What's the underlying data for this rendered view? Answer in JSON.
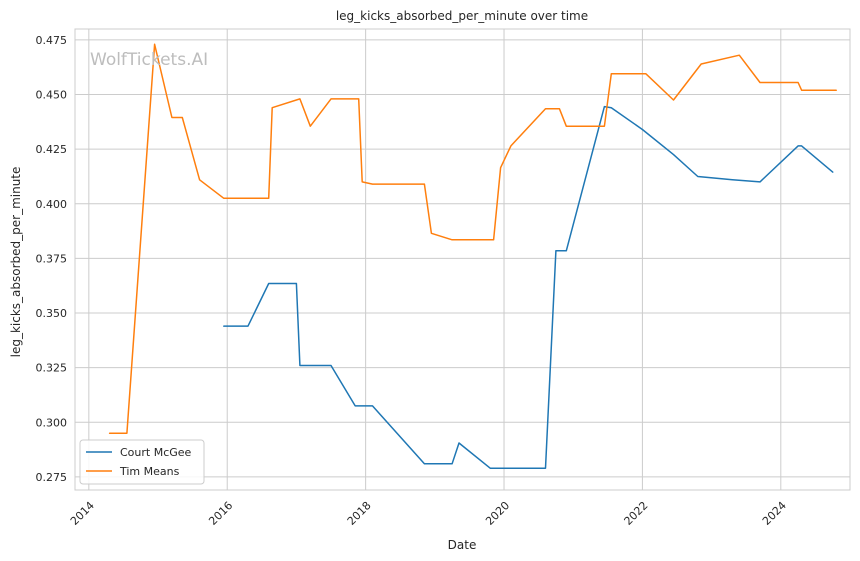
{
  "chart_data": {
    "type": "line",
    "title": "leg_kicks_absorbed_per_minute over time",
    "xlabel": "Date",
    "ylabel": "leg_kicks_absorbed_per_minute",
    "xlim": [
      2013.8,
      2025.0
    ],
    "ylim": [
      0.269,
      0.48
    ],
    "x_ticks": [
      2014,
      2016,
      2018,
      2020,
      2022,
      2024
    ],
    "y_ticks": [
      0.275,
      0.3,
      0.325,
      0.35,
      0.375,
      0.4,
      0.425,
      0.45,
      0.475
    ],
    "y_tick_labels": [
      "0.275",
      "0.300",
      "0.325",
      "0.350",
      "0.375",
      "0.400",
      "0.425",
      "0.450",
      "0.475"
    ],
    "grid": true,
    "legend_position": "lower-left",
    "watermark": "WolfTickets.AI",
    "series": [
      {
        "name": "Court McGee",
        "color": "#1f77b4",
        "points": [
          [
            2015.95,
            0.344
          ],
          [
            2016.3,
            0.344
          ],
          [
            2016.6,
            0.3635
          ],
          [
            2017.0,
            0.3635
          ],
          [
            2017.05,
            0.326
          ],
          [
            2017.5,
            0.326
          ],
          [
            2017.85,
            0.3075
          ],
          [
            2018.1,
            0.3075
          ],
          [
            2018.85,
            0.281
          ],
          [
            2019.25,
            0.281
          ],
          [
            2019.35,
            0.2905
          ],
          [
            2019.8,
            0.279
          ],
          [
            2020.6,
            0.279
          ],
          [
            2020.75,
            0.3785
          ],
          [
            2020.9,
            0.3785
          ],
          [
            2021.45,
            0.4445
          ],
          [
            2021.55,
            0.444
          ],
          [
            2022.0,
            0.434
          ],
          [
            2022.45,
            0.4225
          ],
          [
            2022.8,
            0.4125
          ],
          [
            2023.3,
            0.411
          ],
          [
            2023.7,
            0.41
          ],
          [
            2024.25,
            0.4265
          ],
          [
            2024.3,
            0.4265
          ],
          [
            2024.75,
            0.4145
          ]
        ]
      },
      {
        "name": "Tim Means",
        "color": "#ff7f0e",
        "points": [
          [
            2014.3,
            0.295
          ],
          [
            2014.55,
            0.295
          ],
          [
            2014.95,
            0.473
          ],
          [
            2015.2,
            0.4395
          ],
          [
            2015.35,
            0.4395
          ],
          [
            2015.6,
            0.411
          ],
          [
            2015.95,
            0.4025
          ],
          [
            2016.6,
            0.4025
          ],
          [
            2016.65,
            0.444
          ],
          [
            2017.05,
            0.448
          ],
          [
            2017.2,
            0.4355
          ],
          [
            2017.5,
            0.448
          ],
          [
            2017.9,
            0.448
          ],
          [
            2017.95,
            0.41
          ],
          [
            2018.1,
            0.409
          ],
          [
            2018.85,
            0.409
          ],
          [
            2018.95,
            0.3865
          ],
          [
            2019.25,
            0.3835
          ],
          [
            2019.85,
            0.3835
          ],
          [
            2019.95,
            0.4165
          ],
          [
            2020.1,
            0.4265
          ],
          [
            2020.6,
            0.4435
          ],
          [
            2020.8,
            0.4435
          ],
          [
            2020.9,
            0.4355
          ],
          [
            2021.45,
            0.4355
          ],
          [
            2021.55,
            0.4595
          ],
          [
            2022.05,
            0.4595
          ],
          [
            2022.45,
            0.4475
          ],
          [
            2022.85,
            0.464
          ],
          [
            2023.4,
            0.468
          ],
          [
            2023.7,
            0.4555
          ],
          [
            2024.25,
            0.4555
          ],
          [
            2024.3,
            0.452
          ],
          [
            2024.8,
            0.452
          ]
        ]
      }
    ]
  }
}
